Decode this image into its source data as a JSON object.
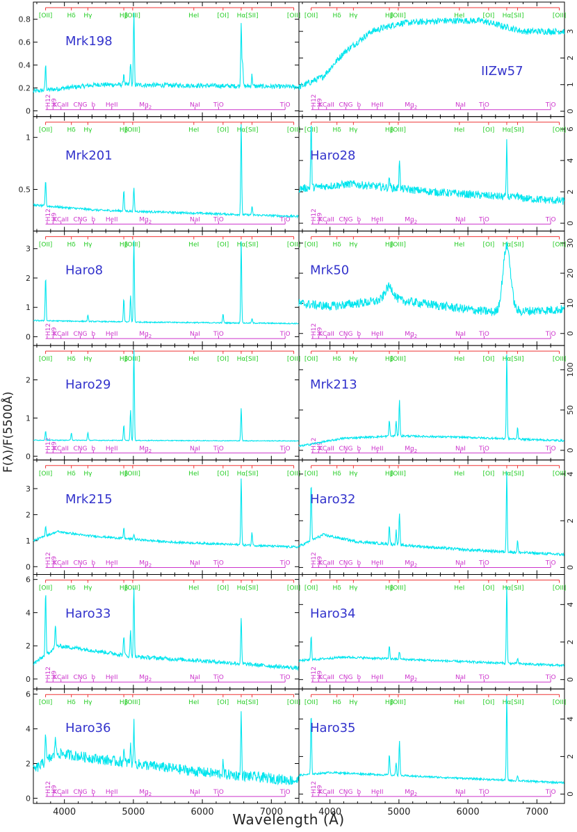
{
  "figure": {
    "ylabel": "F(λ)/F(5500Å)",
    "xlabel": "Wavelength (Å)"
  },
  "chart_data": {
    "type": "line",
    "x_axis": {
      "min": 3550,
      "max": 7400,
      "ticks": [
        4000,
        5000,
        6000,
        7000
      ]
    },
    "line_color": "#00e5ee",
    "emission_label_color": "#22cc22",
    "absorption_label_color": "#cc33cc",
    "bracket_color": "#ee3333",
    "name_color": "#3333cc",
    "emission_lines": [
      {
        "label": "[OII]",
        "x": 3727
      },
      {
        "label": "Hδ",
        "x": 4101
      },
      {
        "label": "Hγ",
        "x": 4340
      },
      {
        "label": "Hβ",
        "x": 4861
      },
      {
        "label": "[OIII]",
        "x": 4990
      },
      {
        "label": "HeI",
        "x": 5876
      },
      {
        "label": "[OI]",
        "x": 6300
      },
      {
        "label": "Hα",
        "x": 6563
      },
      {
        "label": "[SII]",
        "x": 6720
      },
      {
        "label": "[OII]",
        "x": 7325
      }
    ],
    "absorption_lines": [
      {
        "label": "H12",
        "x": 3750,
        "vertical": true
      },
      {
        "label": "H9",
        "x": 3835,
        "vertical": true
      },
      {
        "label": "KCaII",
        "x": 3950
      },
      {
        "label": "CNG",
        "x": 4230
      },
      {
        "label": "b",
        "x": 4420
      },
      {
        "label": "HeII",
        "x": 4686
      },
      {
        "label": "Mg",
        "x": 5175,
        "sub": "2"
      },
      {
        "label": "NaI",
        "x": 5893
      },
      {
        "label": "TiO",
        "x": 6235
      },
      {
        "label": "TiO",
        "x": 7200
      }
    ],
    "panels": [
      {
        "name": "Mrk198",
        "axis": "left",
        "ylim": [
          -0.05,
          0.95
        ],
        "yticks": [
          0,
          0.2,
          0.4,
          0.6,
          0.8
        ],
        "continuum": [
          [
            3550,
            0.17
          ],
          [
            4500,
            0.23
          ],
          [
            6000,
            0.22
          ],
          [
            7400,
            0.21
          ]
        ],
        "noise": 0.02,
        "lines": [
          [
            3727,
            0.22
          ],
          [
            4861,
            0.1
          ],
          [
            4959,
            0.2
          ],
          [
            5007,
            0.62
          ],
          [
            6563,
            0.56
          ],
          [
            6583,
            0.22
          ],
          [
            6720,
            0.1
          ]
        ]
      },
      {
        "name": "IIZw57",
        "axis": "right",
        "ylim": [
          -0.2,
          4.1
        ],
        "yticks": [
          0,
          1,
          2,
          3,
          4
        ],
        "continuum": [
          [
            3550,
            0.9
          ],
          [
            3900,
            1.3
          ],
          [
            4200,
            2.2
          ],
          [
            4600,
            3.0
          ],
          [
            5000,
            3.3
          ],
          [
            5600,
            3.4
          ],
          [
            6200,
            3.4
          ],
          [
            6800,
            3.0
          ],
          [
            7400,
            3.0
          ]
        ],
        "noise": 0.12,
        "lines": []
      },
      {
        "name": "Mrk201",
        "axis": "left",
        "ylim": [
          0.1,
          1.2
        ],
        "yticks": [
          0.5,
          1
        ],
        "continuum": [
          [
            3550,
            0.35
          ],
          [
            4500,
            0.3
          ],
          [
            6000,
            0.27
          ],
          [
            7400,
            0.24
          ]
        ],
        "noise": 0.01,
        "lines": [
          [
            3727,
            0.25
          ],
          [
            4861,
            0.2
          ],
          [
            5007,
            0.22
          ],
          [
            6563,
            0.88
          ],
          [
            6720,
            0.08
          ]
        ]
      },
      {
        "name": "Haro28",
        "axis": "right",
        "ylim": [
          -0.5,
          6.8
        ],
        "yticks": [
          0,
          2,
          4,
          6
        ],
        "continuum": [
          [
            3550,
            2.2
          ],
          [
            4300,
            2.5
          ],
          [
            5500,
            2.0
          ],
          [
            7400,
            1.4
          ]
        ],
        "noise": 0.25,
        "lines": [
          [
            3727,
            4.1
          ],
          [
            4861,
            0.7
          ],
          [
            5007,
            2.0
          ],
          [
            6563,
            3.5
          ],
          [
            6720,
            0.3
          ]
        ]
      },
      {
        "name": "Haro8",
        "axis": "left",
        "ylim": [
          -0.3,
          3.6
        ],
        "yticks": [
          0,
          1,
          2,
          3
        ],
        "continuum": [
          [
            3550,
            0.55
          ],
          [
            5000,
            0.5
          ],
          [
            7400,
            0.45
          ]
        ],
        "noise": 0.02,
        "lines": [
          [
            3727,
            1.5
          ],
          [
            4340,
            0.2
          ],
          [
            4861,
            0.8
          ],
          [
            4959,
            0.9
          ],
          [
            5007,
            2.8
          ],
          [
            6300,
            0.3
          ],
          [
            6563,
            2.8
          ],
          [
            6720,
            0.15
          ]
        ]
      },
      {
        "name": "Mrk50",
        "axis": "right",
        "ylim": [
          -4,
          34
        ],
        "yticks": [
          0,
          10,
          20,
          30
        ],
        "continuum": [
          [
            3550,
            10
          ],
          [
            4000,
            9
          ],
          [
            4800,
            11
          ],
          [
            5000,
            11
          ],
          [
            6000,
            8
          ],
          [
            6400,
            7
          ],
          [
            7400,
            8
          ]
        ],
        "noise": 1.5,
        "lines": [
          [
            4860,
            4.5
          ],
          [
            6563,
            22
          ]
        ]
      },
      {
        "name": "Haro29",
        "axis": "left",
        "ylim": [
          -0.1,
          2.9
        ],
        "yticks": [
          0,
          1,
          2
        ],
        "continuum": [
          [
            3550,
            0.42
          ],
          [
            7400,
            0.4
          ]
        ],
        "noise": 0.01,
        "lines": [
          [
            3727,
            0.25
          ],
          [
            4101,
            0.2
          ],
          [
            4340,
            0.2
          ],
          [
            4861,
            0.4
          ],
          [
            4959,
            0.8
          ],
          [
            5007,
            2.4
          ],
          [
            6563,
            0.85
          ]
        ]
      },
      {
        "name": "Mrk213",
        "axis": "right",
        "ylim": [
          -12,
          130
        ],
        "yticks": [
          0,
          50,
          100
        ],
        "continuum": [
          [
            3550,
            5
          ],
          [
            4200,
            15
          ],
          [
            5000,
            18
          ],
          [
            6000,
            16
          ],
          [
            7400,
            12
          ]
        ],
        "noise": 1.2,
        "lines": [
          [
            4861,
            20
          ],
          [
            4959,
            18
          ],
          [
            5007,
            45
          ],
          [
            6563,
            105
          ],
          [
            6720,
            15
          ]
        ]
      },
      {
        "name": "Mrk215",
        "axis": "left",
        "ylim": [
          -0.3,
          4.1
        ],
        "yticks": [
          0,
          1,
          2,
          3,
          4
        ],
        "continuum": [
          [
            3550,
            1.0
          ],
          [
            3900,
            1.35
          ],
          [
            4300,
            1.2
          ],
          [
            5500,
            0.95
          ],
          [
            7400,
            0.75
          ]
        ],
        "noise": 0.04,
        "lines": [
          [
            3727,
            0.4
          ],
          [
            4861,
            0.4
          ],
          [
            5007,
            0.2
          ],
          [
            6563,
            2.6
          ],
          [
            6720,
            0.5
          ]
        ]
      },
      {
        "name": "Haro32",
        "axis": "right",
        "ylim": [
          -0.3,
          4.6
        ],
        "yticks": [
          0,
          2,
          4
        ],
        "continuum": [
          [
            3550,
            0.9
          ],
          [
            3900,
            1.4
          ],
          [
            4400,
            1.1
          ],
          [
            6000,
            0.75
          ],
          [
            7400,
            0.55
          ]
        ],
        "noise": 0.06,
        "lines": [
          [
            3727,
            2.5
          ],
          [
            4861,
            0.8
          ],
          [
            4959,
            0.6
          ],
          [
            5007,
            1.3
          ],
          [
            6563,
            3.5
          ],
          [
            6720,
            0.5
          ]
        ]
      },
      {
        "name": "Haro33",
        "axis": "left",
        "ylim": [
          -0.6,
          6.3
        ],
        "yticks": [
          0,
          2,
          4,
          6
        ],
        "continuum": [
          [
            3550,
            0.9
          ],
          [
            3900,
            2.0
          ],
          [
            4300,
            1.8
          ],
          [
            5000,
            1.35
          ],
          [
            6000,
            1.1
          ],
          [
            7400,
            0.65
          ]
        ],
        "noise": 0.12,
        "lines": [
          [
            3727,
            3.8
          ],
          [
            3869,
            1.4
          ],
          [
            4861,
            1.2
          ],
          [
            4959,
            1.5
          ],
          [
            5007,
            4.2
          ],
          [
            6563,
            2.8
          ]
        ]
      },
      {
        "name": "Haro34",
        "axis": "right",
        "ylim": [
          -0.5,
          5.6
        ],
        "yticks": [
          0,
          2,
          4
        ],
        "continuum": [
          [
            3550,
            1.0
          ],
          [
            4200,
            1.2
          ],
          [
            7400,
            0.75
          ]
        ],
        "noise": 0.06,
        "lines": [
          [
            3727,
            1.3
          ],
          [
            4861,
            0.7
          ],
          [
            5007,
            0.4
          ],
          [
            6563,
            4.2
          ],
          [
            6720,
            0.3
          ]
        ]
      },
      {
        "name": "Haro36",
        "axis": "left",
        "ylim": [
          -0.3,
          6.3
        ],
        "yticks": [
          0,
          2,
          4,
          6
        ],
        "continuum": [
          [
            3550,
            1.6
          ],
          [
            3900,
            2.6
          ],
          [
            4600,
            2.2
          ],
          [
            6000,
            1.5
          ],
          [
            7400,
            1.0
          ]
        ],
        "noise": 0.3,
        "lines": [
          [
            3727,
            1.8
          ],
          [
            3869,
            1.2
          ],
          [
            4861,
            0.7
          ],
          [
            4959,
            1.0
          ],
          [
            5007,
            2.3
          ],
          [
            6300,
            0.6
          ],
          [
            6563,
            3.7
          ]
        ]
      },
      {
        "name": "Haro35",
        "axis": "right",
        "ylim": [
          -0.5,
          5.6
        ],
        "yticks": [
          0,
          2,
          4
        ],
        "continuum": [
          [
            3550,
            1.0
          ],
          [
            4000,
            1.15
          ],
          [
            7400,
            0.6
          ]
        ],
        "noise": 0.05,
        "lines": [
          [
            3727,
            3.2
          ],
          [
            4861,
            1.1
          ],
          [
            4959,
            0.7
          ],
          [
            5007,
            1.9
          ],
          [
            6563,
            4.5
          ],
          [
            6720,
            0.3
          ]
        ]
      }
    ]
  }
}
